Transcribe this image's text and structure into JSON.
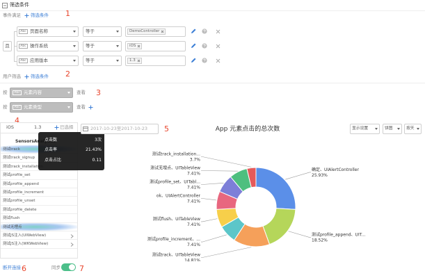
{
  "header": {
    "title": "筛选条件"
  },
  "event_filter": {
    "label": "事件满足",
    "add": "筛选条件",
    "conjunction": "且",
    "icon": "Abc",
    "rows": [
      {
        "field": "页面名称",
        "operator": "等于",
        "value": "DemoController"
      },
      {
        "field": "操作系统",
        "operator": "等于",
        "value": "iOS"
      },
      {
        "field": "应用版本",
        "operator": "等于",
        "value": "1.3"
      }
    ]
  },
  "user_filter": {
    "label": "用户筛选",
    "add": "筛选条件"
  },
  "group_by": {
    "rows": [
      {
        "prefix": "按",
        "field": "元素内容",
        "suffix": "查看"
      },
      {
        "prefix": "按",
        "field": "元素类型",
        "suffix": "查看"
      }
    ]
  },
  "panel": {
    "tabs": [
      "iOS",
      "1.3",
      "已选择"
    ],
    "app": "SensorsAnalytics",
    "items": [
      "测试track",
      "测试track_signup",
      "测试track_installation",
      "测试profile_set",
      "测试profile_append",
      "测试profile_increment",
      "测试profile_unset",
      "测试profile_delete",
      "测试flush",
      "测试无埋点",
      "测试JS注入(UIWebView)",
      "测试JS注入(WKWebView)"
    ],
    "tooltip": [
      {
        "label": "点击数",
        "value": "3次"
      },
      {
        "label": "点击率",
        "value": "21.43%"
      },
      {
        "label": "点击占比",
        "value": "0.11"
      }
    ]
  },
  "footer": {
    "disconnect": "断开连接",
    "sync": "同步"
  },
  "toolbar": {
    "date": "2017-10-23至2017-10-23",
    "buttons": [
      "显示设置",
      "饼图",
      "按天"
    ]
  },
  "annotations": [
    "1",
    "2",
    "3",
    "4",
    "5",
    "6",
    "7"
  ],
  "chart_data": {
    "type": "pie",
    "donut": true,
    "title": "App 元素点击的总次数",
    "categories": [
      "确定、UIAlertController",
      "测试profile_append、UIT...",
      "测试track、UITableView",
      "测试profile_increment、...",
      "测试flush、UITableView",
      "ok、UIAlertController",
      "测试profile_set、UITabl...",
      "测试无埋点、UITableView",
      "测试track_installation..."
    ],
    "values": [
      25.93,
      18.52,
      14.81,
      7.41,
      7.41,
      7.41,
      7.41,
      7.41,
      3.7
    ],
    "value_labels": [
      "25.93%",
      "18.52%",
      "14.81%",
      "7.41%",
      "7.41%",
      "7.41%",
      "7.41%",
      "7.41%",
      "3.7%"
    ],
    "colors": [
      "#5b8fe8",
      "#b5d65a",
      "#f5a05a",
      "#5cc6c9",
      "#f7cf4a",
      "#e8677f",
      "#7d7fd8",
      "#4ebf7f",
      "#e55a5a"
    ]
  }
}
